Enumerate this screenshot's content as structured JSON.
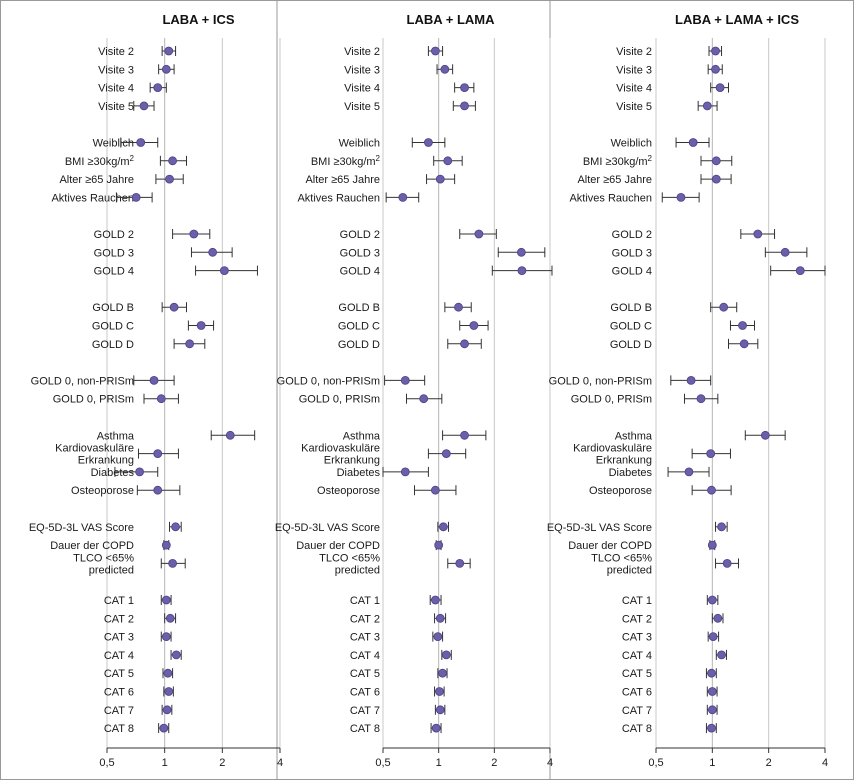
{
  "colors": {
    "point": "#6a5fa8",
    "point_stroke": "#4b4288",
    "whisker": "#333333",
    "grid": "#c8c8c8",
    "border": "#999999"
  },
  "chart_data": [
    {
      "type": "scatter",
      "title": "LABA + ICS",
      "xscale": "log",
      "xlim": [
        0.5,
        4
      ],
      "xticks": [
        "0,5",
        "1",
        "2",
        "4"
      ],
      "xtick_values": [
        0.5,
        1,
        2,
        4
      ],
      "groups": [
        [
          {
            "label": "Visite 2",
            "est": 1.05,
            "lo": 0.97,
            "hi": 1.14
          },
          {
            "label": "Visite 3",
            "est": 1.02,
            "lo": 0.93,
            "hi": 1.12
          },
          {
            "label": "Visite 4",
            "est": 0.92,
            "lo": 0.84,
            "hi": 1.02
          },
          {
            "label": "Visite 5",
            "est": 0.78,
            "lo": 0.69,
            "hi": 0.88
          }
        ],
        [
          {
            "label": "Weiblich",
            "est": 0.75,
            "lo": 0.59,
            "hi": 0.92
          },
          {
            "label": "BMI ≥30kg/m²",
            "est": 1.1,
            "lo": 0.95,
            "hi": 1.3
          },
          {
            "label": "Alter ≥65 Jahre",
            "est": 1.06,
            "lo": 0.9,
            "hi": 1.25
          },
          {
            "label": "Aktives Rauchen",
            "est": 0.71,
            "lo": 0.56,
            "hi": 0.86
          }
        ],
        [
          {
            "label": "GOLD 2",
            "est": 1.42,
            "lo": 1.1,
            "hi": 1.72
          },
          {
            "label": "GOLD 3",
            "est": 1.78,
            "lo": 1.38,
            "hi": 2.25
          },
          {
            "label": "GOLD 4",
            "est": 2.05,
            "lo": 1.45,
            "hi": 3.05
          }
        ],
        [
          {
            "label": "GOLD B",
            "est": 1.12,
            "lo": 0.97,
            "hi": 1.3
          },
          {
            "label": "GOLD C",
            "est": 1.55,
            "lo": 1.33,
            "hi": 1.8
          },
          {
            "label": "GOLD D",
            "est": 1.35,
            "lo": 1.12,
            "hi": 1.62
          }
        ],
        [
          {
            "label": "GOLD 0, non-PRISm",
            "est": 0.88,
            "lo": 0.69,
            "hi": 1.12
          },
          {
            "label": "GOLD 0, PRISm",
            "est": 0.96,
            "lo": 0.78,
            "hi": 1.18
          }
        ],
        [
          {
            "label": "Asthma",
            "est": 2.2,
            "lo": 1.75,
            "hi": 2.95
          },
          {
            "label": "Kardiovaskuläre Erkrankung",
            "est": 0.92,
            "lo": 0.73,
            "hi": 1.18
          },
          {
            "label": "Diabetes",
            "est": 0.74,
            "lo": 0.55,
            "hi": 0.92
          },
          {
            "label": "Osteoporose",
            "est": 0.92,
            "lo": 0.72,
            "hi": 1.2
          }
        ],
        [
          {
            "label": "EQ-5D-3L VAS Score",
            "est": 1.14,
            "lo": 1.06,
            "hi": 1.22
          },
          {
            "label": "Dauer der COPD",
            "est": 1.02,
            "lo": 0.99,
            "hi": 1.05
          },
          {
            "label": "TLCO <65% predicted",
            "est": 1.1,
            "lo": 0.96,
            "hi": 1.28
          }
        ],
        [
          {
            "label": "CAT 1",
            "est": 1.02,
            "lo": 0.96,
            "hi": 1.08
          },
          {
            "label": "CAT 2",
            "est": 1.07,
            "lo": 1.0,
            "hi": 1.14
          },
          {
            "label": "CAT 3",
            "est": 1.02,
            "lo": 0.96,
            "hi": 1.08
          },
          {
            "label": "CAT 4",
            "est": 1.15,
            "lo": 1.08,
            "hi": 1.22
          },
          {
            "label": "CAT 5",
            "est": 1.04,
            "lo": 0.98,
            "hi": 1.1
          },
          {
            "label": "CAT 6",
            "est": 1.05,
            "lo": 0.99,
            "hi": 1.11
          },
          {
            "label": "CAT 7",
            "est": 1.03,
            "lo": 0.97,
            "hi": 1.09
          },
          {
            "label": "CAT 8",
            "est": 0.99,
            "lo": 0.93,
            "hi": 1.05
          }
        ]
      ]
    },
    {
      "type": "scatter",
      "title": "LABA + LAMA",
      "xscale": "log",
      "xlim": [
        0.5,
        4
      ],
      "xticks": [
        "0,5",
        "1",
        "2",
        "4"
      ],
      "xtick_values": [
        0.5,
        1,
        2,
        4
      ],
      "groups": [
        [
          {
            "label": "Visite 2",
            "est": 0.96,
            "lo": 0.88,
            "hi": 1.05
          },
          {
            "label": "Visite 3",
            "est": 1.08,
            "lo": 0.98,
            "hi": 1.19
          },
          {
            "label": "Visite 4",
            "est": 1.38,
            "lo": 1.22,
            "hi": 1.55
          },
          {
            "label": "Visite 5",
            "est": 1.38,
            "lo": 1.2,
            "hi": 1.58
          }
        ],
        [
          {
            "label": "Weiblich",
            "est": 0.88,
            "lo": 0.72,
            "hi": 1.08
          },
          {
            "label": "BMI ≥30kg/m²",
            "est": 1.12,
            "lo": 0.94,
            "hi": 1.34
          },
          {
            "label": "Alter ≥65 Jahre",
            "est": 1.02,
            "lo": 0.86,
            "hi": 1.22
          },
          {
            "label": "Aktives Rauchen",
            "est": 0.64,
            "lo": 0.52,
            "hi": 0.78
          }
        ],
        [
          {
            "label": "GOLD 2",
            "est": 1.65,
            "lo": 1.3,
            "hi": 2.05
          },
          {
            "label": "GOLD 3",
            "est": 2.8,
            "lo": 2.1,
            "hi": 3.75
          },
          {
            "label": "GOLD 4",
            "est": 2.82,
            "lo": 1.95,
            "hi": 4.1
          }
        ],
        [
          {
            "label": "GOLD B",
            "est": 1.28,
            "lo": 1.08,
            "hi": 1.5
          },
          {
            "label": "GOLD C",
            "est": 1.55,
            "lo": 1.3,
            "hi": 1.85
          },
          {
            "label": "GOLD D",
            "est": 1.38,
            "lo": 1.12,
            "hi": 1.7
          }
        ],
        [
          {
            "label": "GOLD 0, non-PRISm",
            "est": 0.66,
            "lo": 0.51,
            "hi": 0.84
          },
          {
            "label": "GOLD 0, PRISm",
            "est": 0.83,
            "lo": 0.67,
            "hi": 1.04
          }
        ],
        [
          {
            "label": "Asthma",
            "est": 1.38,
            "lo": 1.05,
            "hi": 1.8
          },
          {
            "label": "Kardiovaskuläre Erkrankung",
            "est": 1.1,
            "lo": 0.88,
            "hi": 1.4
          },
          {
            "label": "Diabetes",
            "est": 0.66,
            "lo": 0.5,
            "hi": 0.88
          },
          {
            "label": "Osteoporose",
            "est": 0.96,
            "lo": 0.74,
            "hi": 1.24
          }
        ],
        [
          {
            "label": "EQ-5D-3L VAS Score",
            "est": 1.06,
            "lo": 0.99,
            "hi": 1.13
          },
          {
            "label": "Dauer der COPD",
            "est": 1.0,
            "lo": 0.97,
            "hi": 1.03
          },
          {
            "label": "TLCO <65% predicted",
            "est": 1.3,
            "lo": 1.12,
            "hi": 1.48
          }
        ],
        [
          {
            "label": "CAT 1",
            "est": 0.96,
            "lo": 0.9,
            "hi": 1.03
          },
          {
            "label": "CAT 2",
            "est": 1.02,
            "lo": 0.95,
            "hi": 1.09
          },
          {
            "label": "CAT 3",
            "est": 0.99,
            "lo": 0.93,
            "hi": 1.05
          },
          {
            "label": "CAT 4",
            "est": 1.1,
            "lo": 1.04,
            "hi": 1.17
          },
          {
            "label": "CAT 5",
            "est": 1.05,
            "lo": 0.99,
            "hi": 1.11
          },
          {
            "label": "CAT 6",
            "est": 1.01,
            "lo": 0.95,
            "hi": 1.07
          },
          {
            "label": "CAT 7",
            "est": 1.02,
            "lo": 0.96,
            "hi": 1.08
          },
          {
            "label": "CAT 8",
            "est": 0.97,
            "lo": 0.91,
            "hi": 1.03
          }
        ]
      ]
    },
    {
      "type": "scatter",
      "title": "LABA + LAMA + ICS",
      "xscale": "log",
      "xlim": [
        0.5,
        4
      ],
      "xticks": [
        "0,5",
        "1",
        "2",
        "4"
      ],
      "xtick_values": [
        0.5,
        1,
        2,
        4
      ],
      "groups": [
        [
          {
            "label": "Visite 2",
            "est": 1.04,
            "lo": 0.96,
            "hi": 1.12
          },
          {
            "label": "Visite 3",
            "est": 1.04,
            "lo": 0.95,
            "hi": 1.13
          },
          {
            "label": "Visite 4",
            "est": 1.1,
            "lo": 0.98,
            "hi": 1.22
          },
          {
            "label": "Visite 5",
            "est": 0.94,
            "lo": 0.84,
            "hi": 1.06
          }
        ],
        [
          {
            "label": "Weiblich",
            "est": 0.79,
            "lo": 0.64,
            "hi": 0.96
          },
          {
            "label": "BMI ≥30kg/m²",
            "est": 1.05,
            "lo": 0.87,
            "hi": 1.27
          },
          {
            "label": "Alter ≥65 Jahre",
            "est": 1.05,
            "lo": 0.87,
            "hi": 1.26
          },
          {
            "label": "Aktives Rauchen",
            "est": 0.68,
            "lo": 0.54,
            "hi": 0.85
          }
        ],
        [
          {
            "label": "GOLD 2",
            "est": 1.75,
            "lo": 1.42,
            "hi": 2.15
          },
          {
            "label": "GOLD 3",
            "est": 2.45,
            "lo": 1.92,
            "hi": 3.2
          },
          {
            "label": "GOLD 4",
            "est": 2.95,
            "lo": 2.05,
            "hi": 4.0
          }
        ],
        [
          {
            "label": "GOLD B",
            "est": 1.15,
            "lo": 0.98,
            "hi": 1.35
          },
          {
            "label": "GOLD C",
            "est": 1.45,
            "lo": 1.25,
            "hi": 1.68
          },
          {
            "label": "GOLD D",
            "est": 1.48,
            "lo": 1.22,
            "hi": 1.75
          }
        ],
        [
          {
            "label": "GOLD 0, non-PRISm",
            "est": 0.77,
            "lo": 0.6,
            "hi": 0.98
          },
          {
            "label": "GOLD 0, PRISm",
            "est": 0.87,
            "lo": 0.71,
            "hi": 1.07
          }
        ],
        [
          {
            "label": "Asthma",
            "est": 1.92,
            "lo": 1.5,
            "hi": 2.45
          },
          {
            "label": "Kardiovaskuläre Erkrankung",
            "est": 0.98,
            "lo": 0.78,
            "hi": 1.25
          },
          {
            "label": "Diabetes",
            "est": 0.75,
            "lo": 0.58,
            "hi": 0.96
          },
          {
            "label": "Osteoporose",
            "est": 0.99,
            "lo": 0.78,
            "hi": 1.26
          }
        ],
        [
          {
            "label": "EQ-5D-3L VAS Score",
            "est": 1.12,
            "lo": 1.04,
            "hi": 1.2
          },
          {
            "label": "Dauer der COPD",
            "est": 1.0,
            "lo": 0.97,
            "hi": 1.03
          },
          {
            "label": "TLCO <65% predicted",
            "est": 1.2,
            "lo": 1.04,
            "hi": 1.38
          }
        ],
        [
          {
            "label": "CAT 1",
            "est": 1.0,
            "lo": 0.94,
            "hi": 1.07
          },
          {
            "label": "CAT 2",
            "est": 1.07,
            "lo": 1.0,
            "hi": 1.14
          },
          {
            "label": "CAT 3",
            "est": 1.01,
            "lo": 0.95,
            "hi": 1.08
          },
          {
            "label": "CAT 4",
            "est": 1.12,
            "lo": 1.05,
            "hi": 1.19
          },
          {
            "label": "CAT 5",
            "est": 0.99,
            "lo": 0.93,
            "hi": 1.05
          },
          {
            "label": "CAT 6",
            "est": 1.0,
            "lo": 0.94,
            "hi": 1.06
          },
          {
            "label": "CAT 7",
            "est": 1.0,
            "lo": 0.94,
            "hi": 1.06
          },
          {
            "label": "CAT 8",
            "est": 0.99,
            "lo": 0.93,
            "hi": 1.05
          }
        ]
      ]
    }
  ]
}
